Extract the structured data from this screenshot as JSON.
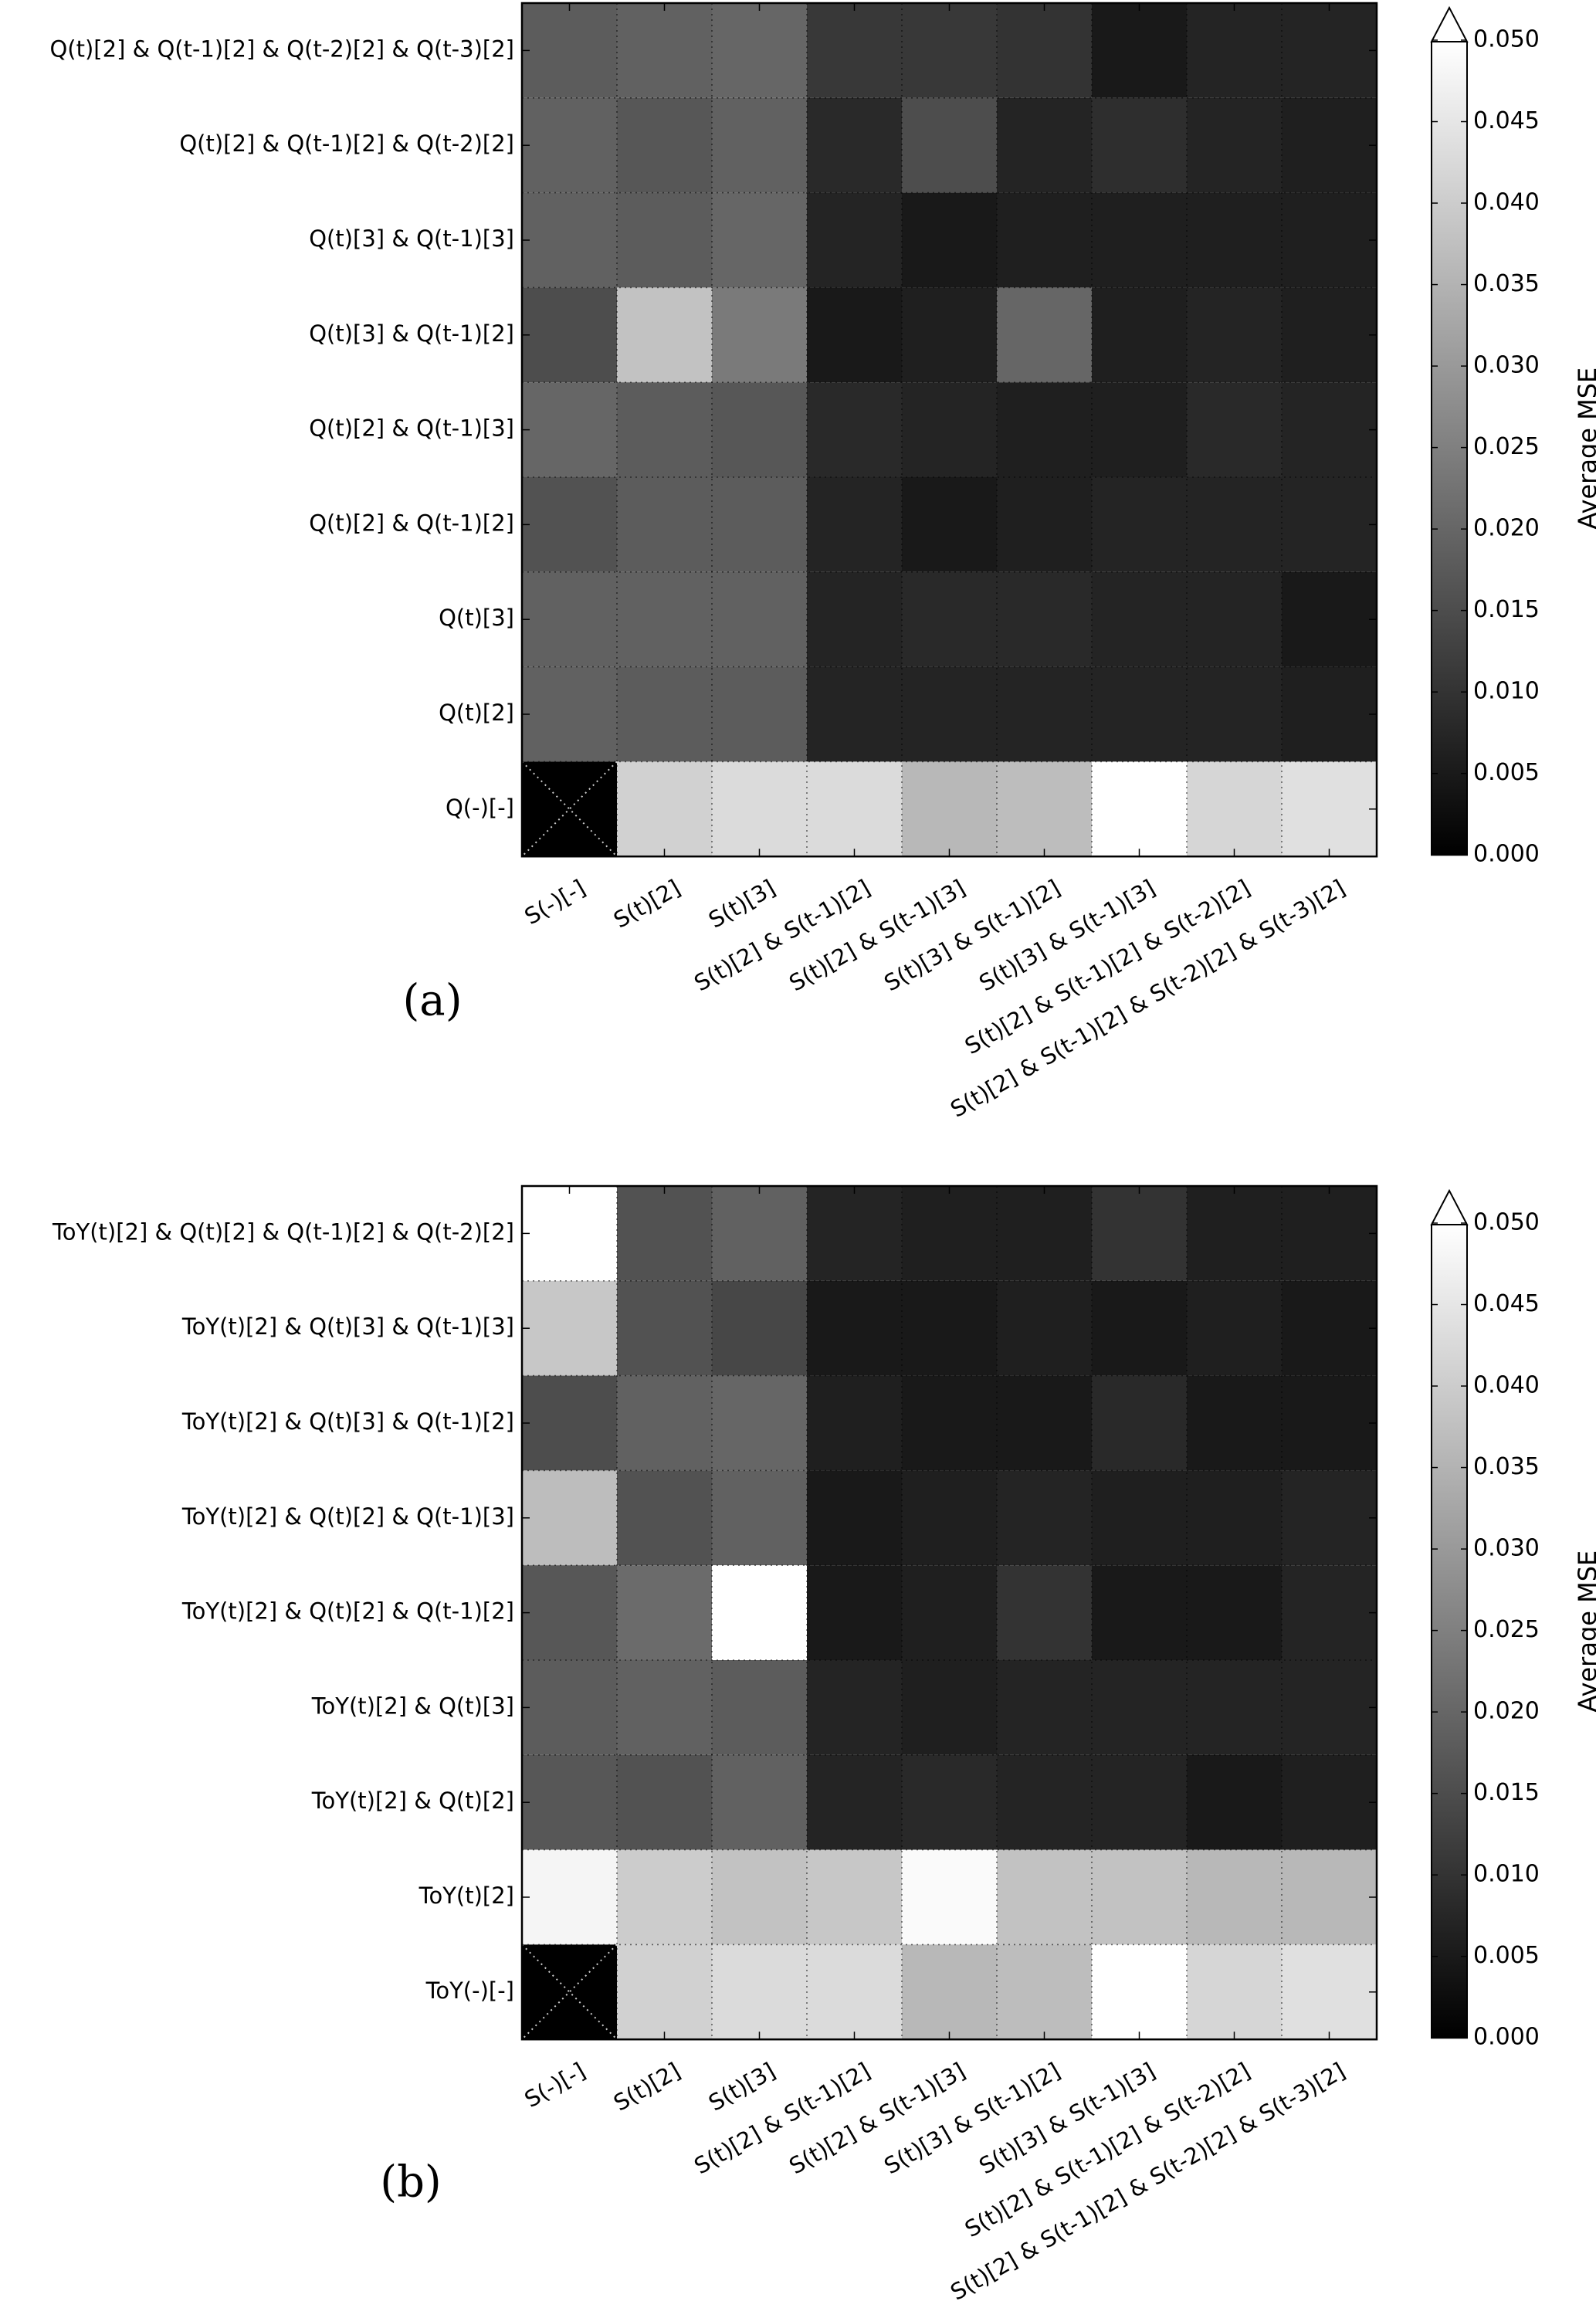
{
  "chart_data": [
    {
      "type": "heatmap",
      "panel_label": "(a)",
      "colorbar": {
        "label": "Average MSE",
        "ticks": [
          "0.000",
          "0.005",
          "0.010",
          "0.015",
          "0.020",
          "0.025",
          "0.030",
          "0.035",
          "0.040",
          "0.045",
          "0.050"
        ],
        "range": [
          0,
          0.05
        ],
        "extend": "max",
        "cmap": "gray"
      },
      "x_tick_labels": [
        "S(-)[-]",
        "S(t)[2]",
        "S(t)[3]",
        "S(t)[2] & S(t-1)[2]",
        "S(t)[2] & S(t-1)[3]",
        "S(t)[3] & S(t-1)[2]",
        "S(t)[3] & S(t-1)[3]",
        "S(t)[2] & S(t-1)[2] & S(t-2)[2]",
        "S(t)[2] & S(t-1)[2] & S(t-2)[2] & S(t-3)[2]"
      ],
      "y_tick_labels": [
        "Q(t)[2] & Q(t-1)[2] & Q(t-2)[2] & Q(t-3)[2]",
        "Q(t)[2] & Q(t-1)[2] & Q(t-2)[2]",
        "Q(t)[3] & Q(t-1)[3]",
        "Q(t)[3] & Q(t-1)[2]",
        "Q(t)[2] & Q(t-1)[3]",
        "Q(t)[2] & Q(t-1)[2]",
        "Q(t)[3]",
        "Q(t)[2]",
        "Q(-)[-]"
      ],
      "values": [
        [
          0.018,
          0.019,
          0.02,
          0.011,
          0.011,
          0.01,
          0.005,
          0.007,
          0.007
        ],
        [
          0.019,
          0.017,
          0.019,
          0.008,
          0.015,
          0.007,
          0.009,
          0.007,
          0.006
        ],
        [
          0.019,
          0.018,
          0.02,
          0.007,
          0.005,
          0.006,
          0.006,
          0.006,
          0.006
        ],
        [
          0.015,
          0.038,
          0.024,
          0.005,
          0.006,
          0.02,
          0.006,
          0.007,
          0.006
        ],
        [
          0.02,
          0.018,
          0.017,
          0.008,
          0.007,
          0.006,
          0.006,
          0.008,
          0.007
        ],
        [
          0.016,
          0.018,
          0.018,
          0.007,
          0.005,
          0.006,
          0.007,
          0.007,
          0.007
        ],
        [
          0.019,
          0.019,
          0.019,
          0.007,
          0.008,
          0.008,
          0.007,
          0.007,
          0.005
        ],
        [
          0.019,
          0.018,
          0.018,
          0.007,
          0.007,
          0.007,
          0.007,
          0.007,
          0.006
        ],
        [
          null,
          0.041,
          0.043,
          0.043,
          0.036,
          0.037,
          0.052,
          0.042,
          0.044
        ]
      ]
    },
    {
      "type": "heatmap",
      "panel_label": "(b)",
      "colorbar": {
        "label": "Average MSE",
        "ticks": [
          "0.000",
          "0.005",
          "0.010",
          "0.015",
          "0.020",
          "0.025",
          "0.030",
          "0.035",
          "0.040",
          "0.045",
          "0.050"
        ],
        "range": [
          0,
          0.05
        ],
        "extend": "max",
        "cmap": "gray"
      },
      "x_tick_labels": [
        "S(-)[-]",
        "S(t)[2]",
        "S(t)[3]",
        "S(t)[2] & S(t-1)[2]",
        "S(t)[2] & S(t-1)[3]",
        "S(t)[3] & S(t-1)[2]",
        "S(t)[3] & S(t-1)[3]",
        "S(t)[2] & S(t-1)[2] & S(t-2)[2]",
        "S(t)[2] & S(t-1)[2] & S(t-2)[2] & S(t-3)[2]"
      ],
      "y_tick_labels": [
        "ToY(t)[2] & Q(t)[2] & Q(t-1)[2] & Q(t-2)[2]",
        "ToY(t)[2] & Q(t)[3] & Q(t-1)[3]",
        "ToY(t)[2] & Q(t)[3] & Q(t-1)[2]",
        "ToY(t)[2] & Q(t)[2] & Q(t-1)[3]",
        "ToY(t)[2] & Q(t)[2] & Q(t-1)[2]",
        "ToY(t)[2] & Q(t)[3]",
        "ToY(t)[2] & Q(t)[2]",
        "ToY(t)[2]",
        "ToY(-)[-]"
      ],
      "values": [
        [
          0.05,
          0.016,
          0.019,
          0.007,
          0.006,
          0.006,
          0.01,
          0.006,
          0.006
        ],
        [
          0.039,
          0.016,
          0.014,
          0.005,
          0.005,
          0.006,
          0.005,
          0.006,
          0.005
        ],
        [
          0.015,
          0.019,
          0.02,
          0.006,
          0.005,
          0.005,
          0.008,
          0.005,
          0.005
        ],
        [
          0.037,
          0.016,
          0.019,
          0.005,
          0.006,
          0.007,
          0.006,
          0.006,
          0.007
        ],
        [
          0.017,
          0.021,
          0.053,
          0.005,
          0.006,
          0.01,
          0.005,
          0.005,
          0.007
        ],
        [
          0.018,
          0.019,
          0.018,
          0.007,
          0.006,
          0.007,
          0.007,
          0.007,
          0.007
        ],
        [
          0.017,
          0.016,
          0.019,
          0.007,
          0.008,
          0.007,
          0.007,
          0.005,
          0.006
        ],
        [
          0.048,
          0.04,
          0.038,
          0.039,
          0.049,
          0.038,
          0.038,
          0.036,
          0.036
        ],
        [
          null,
          0.041,
          0.043,
          0.043,
          0.036,
          0.037,
          0.052,
          0.042,
          0.044
        ]
      ]
    }
  ]
}
